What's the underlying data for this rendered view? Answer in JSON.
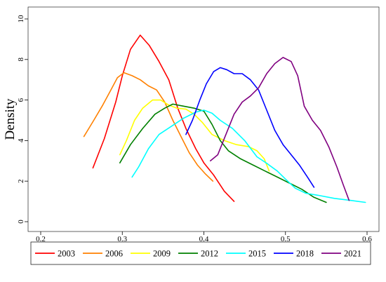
{
  "chart_data": {
    "type": "line",
    "ylabel": "Density",
    "xlim": [
      0.2,
      0.6
    ],
    "ylim": [
      0,
      10
    ],
    "x_ticks": [
      0.2,
      0.3,
      0.4,
      0.5,
      0.6
    ],
    "x_tick_labels": [
      "0.2",
      "0.3",
      "0.4",
      "0.5",
      "0.6"
    ],
    "y_ticks": [
      0,
      2,
      4,
      6,
      8,
      10
    ],
    "y_tick_labels": [
      "0",
      "2",
      "4",
      "6",
      "8",
      "10"
    ],
    "grid": false,
    "legend_position": "bottom",
    "series": [
      {
        "name": "2003",
        "color": "#ff0000",
        "points": [
          [
            0.264,
            2.65
          ],
          [
            0.278,
            4.1
          ],
          [
            0.292,
            5.9
          ],
          [
            0.3,
            7.2
          ],
          [
            0.31,
            8.5
          ],
          [
            0.322,
            9.2
          ],
          [
            0.333,
            8.7
          ],
          [
            0.345,
            7.9
          ],
          [
            0.357,
            7.0
          ],
          [
            0.368,
            5.6
          ],
          [
            0.378,
            4.6
          ],
          [
            0.39,
            3.6
          ],
          [
            0.4,
            2.9
          ],
          [
            0.412,
            2.3
          ],
          [
            0.425,
            1.5
          ],
          [
            0.437,
            1.0
          ]
        ]
      },
      {
        "name": "2006",
        "color": "#ff8000",
        "points": [
          [
            0.253,
            4.2
          ],
          [
            0.265,
            5.0
          ],
          [
            0.276,
            5.75
          ],
          [
            0.286,
            6.5
          ],
          [
            0.294,
            7.1
          ],
          [
            0.302,
            7.35
          ],
          [
            0.312,
            7.2
          ],
          [
            0.322,
            7.0
          ],
          [
            0.332,
            6.7
          ],
          [
            0.342,
            6.5
          ],
          [
            0.352,
            5.9
          ],
          [
            0.362,
            5.0
          ],
          [
            0.372,
            4.2
          ],
          [
            0.382,
            3.4
          ],
          [
            0.392,
            2.8
          ],
          [
            0.402,
            2.35
          ],
          [
            0.411,
            2.0
          ]
        ]
      },
      {
        "name": "2009",
        "color": "#ffff00",
        "points": [
          [
            0.297,
            3.3
          ],
          [
            0.305,
            4.0
          ],
          [
            0.315,
            5.0
          ],
          [
            0.325,
            5.6
          ],
          [
            0.337,
            6.0
          ],
          [
            0.347,
            6.0
          ],
          [
            0.357,
            5.75
          ],
          [
            0.367,
            5.6
          ],
          [
            0.378,
            5.55
          ],
          [
            0.388,
            5.3
          ],
          [
            0.398,
            4.9
          ],
          [
            0.41,
            4.3
          ],
          [
            0.425,
            4.0
          ],
          [
            0.44,
            3.8
          ],
          [
            0.455,
            3.7
          ],
          [
            0.465,
            3.5
          ],
          [
            0.474,
            3.1
          ],
          [
            0.48,
            2.5
          ]
        ]
      },
      {
        "name": "2012",
        "color": "#008000",
        "points": [
          [
            0.297,
            2.9
          ],
          [
            0.31,
            3.8
          ],
          [
            0.325,
            4.6
          ],
          [
            0.34,
            5.3
          ],
          [
            0.352,
            5.6
          ],
          [
            0.362,
            5.8
          ],
          [
            0.375,
            5.7
          ],
          [
            0.388,
            5.6
          ],
          [
            0.4,
            5.45
          ],
          [
            0.41,
            4.8
          ],
          [
            0.42,
            4.0
          ],
          [
            0.43,
            3.5
          ],
          [
            0.445,
            3.1
          ],
          [
            0.46,
            2.8
          ],
          [
            0.475,
            2.5
          ],
          [
            0.49,
            2.2
          ],
          [
            0.505,
            1.9
          ],
          [
            0.52,
            1.6
          ],
          [
            0.535,
            1.2
          ],
          [
            0.55,
            0.95
          ]
        ]
      },
      {
        "name": "2015",
        "color": "#00ffff",
        "points": [
          [
            0.312,
            2.2
          ],
          [
            0.32,
            2.7
          ],
          [
            0.332,
            3.6
          ],
          [
            0.345,
            4.3
          ],
          [
            0.36,
            4.7
          ],
          [
            0.375,
            5.1
          ],
          [
            0.39,
            5.4
          ],
          [
            0.4,
            5.5
          ],
          [
            0.41,
            5.35
          ],
          [
            0.42,
            5.0
          ],
          [
            0.435,
            4.6
          ],
          [
            0.45,
            4.0
          ],
          [
            0.465,
            3.2
          ],
          [
            0.478,
            2.85
          ],
          [
            0.49,
            2.5
          ],
          [
            0.5,
            2.1
          ],
          [
            0.512,
            1.65
          ],
          [
            0.525,
            1.4
          ],
          [
            0.54,
            1.3
          ],
          [
            0.56,
            1.15
          ],
          [
            0.58,
            1.05
          ],
          [
            0.598,
            0.95
          ]
        ]
      },
      {
        "name": "2018",
        "color": "#0000ff",
        "points": [
          [
            0.378,
            4.3
          ],
          [
            0.386,
            5.0
          ],
          [
            0.395,
            6.0
          ],
          [
            0.403,
            6.8
          ],
          [
            0.412,
            7.4
          ],
          [
            0.42,
            7.6
          ],
          [
            0.428,
            7.5
          ],
          [
            0.437,
            7.3
          ],
          [
            0.447,
            7.3
          ],
          [
            0.457,
            7.0
          ],
          [
            0.467,
            6.5
          ],
          [
            0.477,
            5.5
          ],
          [
            0.487,
            4.5
          ],
          [
            0.497,
            3.8
          ],
          [
            0.507,
            3.3
          ],
          [
            0.517,
            2.8
          ],
          [
            0.527,
            2.2
          ],
          [
            0.535,
            1.7
          ]
        ]
      },
      {
        "name": "2021",
        "color": "#800080",
        "points": [
          [
            0.408,
            3.0
          ],
          [
            0.417,
            3.3
          ],
          [
            0.427,
            4.3
          ],
          [
            0.437,
            5.3
          ],
          [
            0.447,
            5.9
          ],
          [
            0.457,
            6.2
          ],
          [
            0.467,
            6.6
          ],
          [
            0.477,
            7.3
          ],
          [
            0.487,
            7.8
          ],
          [
            0.497,
            8.1
          ],
          [
            0.507,
            7.9
          ],
          [
            0.515,
            7.2
          ],
          [
            0.523,
            5.7
          ],
          [
            0.533,
            5.0
          ],
          [
            0.543,
            4.5
          ],
          [
            0.553,
            3.7
          ],
          [
            0.563,
            2.7
          ],
          [
            0.571,
            1.8
          ],
          [
            0.578,
            1.05
          ]
        ]
      }
    ]
  }
}
